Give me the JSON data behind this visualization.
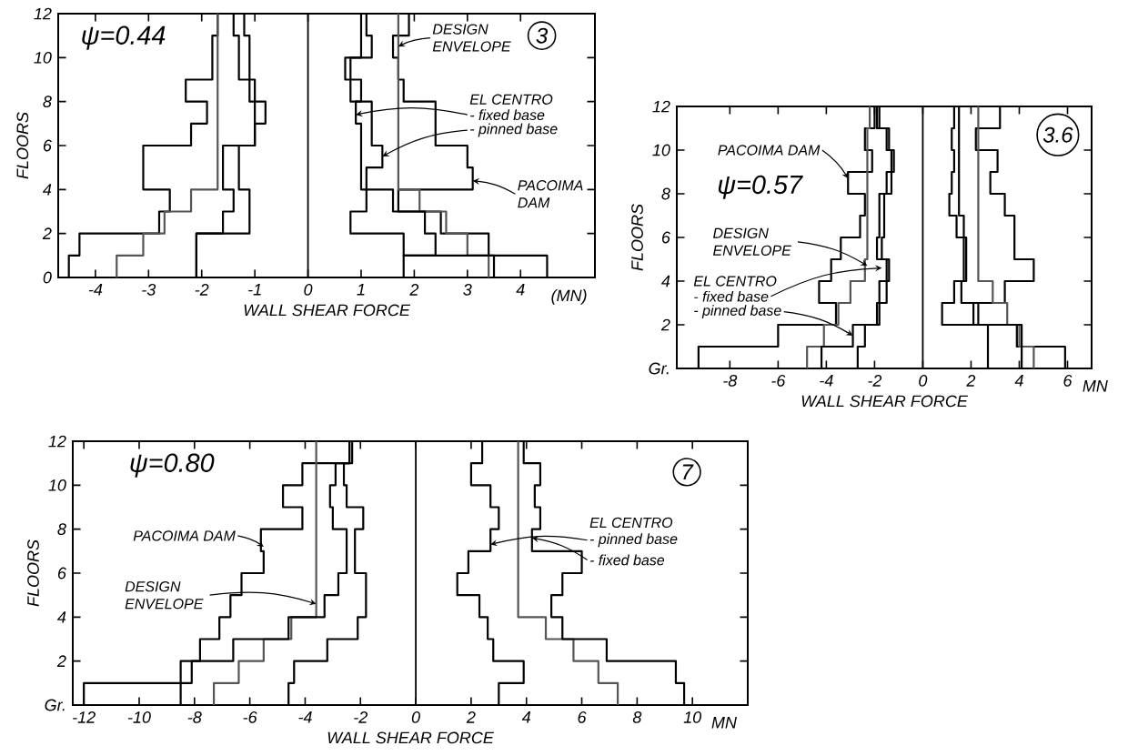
{
  "chart_data": [
    {
      "type": "line",
      "xlabel": "WALL SHEAR FORCE",
      "ylabel": "FLOORS",
      "xlim": [
        -4.7,
        5.4
      ],
      "ylim": [
        0,
        12
      ],
      "xticks": [
        -4,
        -3,
        -2,
        -1,
        0,
        1,
        2,
        3,
        4
      ],
      "yticks": [
        0,
        2,
        4,
        6,
        8,
        10,
        12
      ],
      "ref_lines": [
        {
          "axis": "x",
          "value": 0
        }
      ],
      "annotations": [
        "ψ=0.44",
        "3",
        "(MN)",
        {
          "text": "DESIGN ENVELOPE",
          "x": 1.7,
          "y": 10.5
        },
        "EL CENTRO",
        {
          "text": "- fixed base",
          "x": 0.9,
          "y": 7.4
        },
        {
          "text": "- pinned base",
          "x": 1.4,
          "y": 5.5
        },
        {
          "text": "PACOIMA DAM",
          "x": 3.1,
          "y": 4.4
        }
      ],
      "series": [
        {
          "color": "#000000",
          "x": [
            -4.5,
            -4.5,
            -4.3,
            -4.3,
            -2.8,
            -2.8,
            -2.6,
            -2.6,
            -3.1,
            -3.1,
            -3.1,
            -3.1,
            -2.2,
            -2.2,
            -1.9,
            -1.9,
            -2.3,
            -2.3,
            -1.8,
            -1.8,
            -1.8,
            -1.8,
            -1.7,
            -1.7
          ],
          "values": [
            0,
            1,
            1,
            2,
            2,
            3,
            3,
            4,
            4,
            5,
            5,
            6,
            6,
            7,
            7,
            8,
            8,
            9,
            9,
            10,
            10,
            11,
            11,
            12
          ]
        },
        {
          "color": "#555555",
          "x": [
            -3.6,
            -3.6,
            -3.1,
            -3.1,
            -2.7,
            -2.7,
            -2.2,
            -2.2,
            -1.7,
            -1.7,
            -1.7,
            -1.7,
            -1.7,
            -1.7,
            -1.7,
            -1.7,
            -1.7,
            -1.7,
            -1.7,
            -1.7,
            -1.7,
            -1.7,
            -1.7,
            -1.7
          ],
          "values": [
            0,
            1,
            1,
            2,
            2,
            3,
            3,
            4,
            4,
            5,
            5,
            6,
            6,
            7,
            7,
            8,
            8,
            9,
            9,
            10,
            10,
            11,
            11,
            12
          ]
        },
        {
          "color": "#000000",
          "x": [
            -2.1,
            -2.1,
            -2.1,
            -2.1,
            -1.1,
            -1.1,
            -1.1,
            -1.1,
            -1.3,
            -1.3,
            -1.3,
            -1.3,
            -1.0,
            -1.0,
            -0.8,
            -0.8,
            -1.0,
            -1.0,
            -1.1,
            -1.1,
            -1.1,
            -1.1,
            -1.2,
            -1.2
          ],
          "values": [
            0,
            1,
            1,
            2,
            2,
            3,
            3,
            4,
            4,
            5,
            5,
            6,
            6,
            7,
            7,
            8,
            8,
            9,
            9,
            10,
            10,
            11,
            11,
            12
          ]
        },
        {
          "color": "#000000",
          "x": [
            -2.1,
            -2.1,
            -2.1,
            -2.1,
            -1.6,
            -1.6,
            -1.4,
            -1.4,
            -1.6,
            -1.6,
            -1.6,
            -1.6,
            -1.0,
            -1.0,
            -1.0,
            -1.0,
            -1.1,
            -1.1,
            -1.3,
            -1.3,
            -1.3,
            -1.3,
            -1.4,
            -1.4
          ],
          "values": [
            0,
            1,
            1,
            2,
            2,
            3,
            3,
            4,
            4,
            5,
            5,
            6,
            6,
            7,
            7,
            8,
            8,
            9,
            9,
            10,
            10,
            11,
            11,
            12
          ]
        },
        {
          "color": "#000000",
          "x": [
            4.5,
            4.5,
            3.4,
            3.4,
            2.5,
            2.5,
            1.7,
            1.7,
            3.1,
            3.1,
            3.0,
            3.0,
            2.4,
            2.4,
            1.8,
            1.8,
            1.7,
            1.7,
            1.6,
            1.6,
            1.9,
            1.9
          ],
          "values": [
            0,
            1,
            1,
            2,
            2,
            3,
            3,
            4,
            4,
            5,
            5,
            6,
            6,
            8,
            8,
            9,
            9,
            10,
            10,
            11,
            11,
            12
          ]
        },
        {
          "color": "#555555",
          "x": [
            3.4,
            3.4,
            3.0,
            3.0,
            2.6,
            2.6,
            2.1,
            2.1,
            1.7,
            1.7,
            1.7,
            1.7,
            1.7,
            1.7,
            1.7,
            1.7,
            1.7,
            1.7,
            1.7,
            1.7,
            1.7,
            1.7,
            1.7,
            1.7
          ],
          "values": [
            0,
            1,
            1,
            2,
            2,
            3,
            3,
            4,
            4,
            5,
            5,
            6,
            6,
            7,
            7,
            8,
            8,
            9,
            9,
            10,
            10,
            11,
            11,
            12
          ]
        },
        {
          "color": "#000000",
          "x": [
            1.8,
            1.8,
            2.4,
            2.4,
            2.2,
            2.2,
            1.6,
            1.6,
            1.0,
            1.0,
            1.0,
            1.0,
            1.0,
            1.0,
            0.9,
            0.9,
            1.0,
            1.0,
            0.7,
            0.7,
            1.0,
            1.0,
            1.0,
            1.0
          ],
          "values": [
            0,
            1,
            1,
            2,
            2,
            3,
            3,
            4,
            4,
            5,
            5,
            6,
            6,
            7,
            7,
            8,
            8,
            9,
            9,
            10,
            10,
            11,
            11,
            12
          ]
        },
        {
          "color": "#000000",
          "x": [
            3.5,
            3.5,
            1.8,
            1.8,
            0.8,
            0.8,
            1.1,
            1.1,
            1.1,
            1.1,
            1.4,
            1.4,
            1.2,
            1.2,
            1.2,
            1.2,
            0.8,
            0.8,
            0.8,
            0.8,
            1.2,
            1.2,
            1.1,
            1.1
          ],
          "values": [
            0,
            1,
            1,
            2,
            2,
            3,
            3,
            4,
            4,
            5,
            5,
            6,
            6,
            7,
            7,
            8,
            8,
            9,
            9,
            10,
            10,
            11,
            11,
            12
          ]
        }
      ]
    },
    {
      "type": "line",
      "xlabel": "WALL SHEAR FORCE",
      "ylabel": "FLOORS",
      "xlim": [
        -10.2,
        7
      ],
      "ylim": [
        0,
        12
      ],
      "xticks": [
        -8,
        -6,
        -4,
        -2,
        0,
        2,
        4,
        6
      ],
      "yticks": [
        {
          "value": 0,
          "label": "Gr."
        },
        2,
        4,
        6,
        8,
        10,
        12
      ],
      "ref_lines": [
        {
          "axis": "x",
          "value": 0
        }
      ],
      "annotations": [
        "ψ=0.57",
        "3.6",
        "MN",
        {
          "text": "PACOIMA DAM",
          "x": -3.1,
          "y": 8.7
        },
        {
          "text": "DESIGN ENVELOPE",
          "x": -2.3,
          "y": 4.7
        },
        "EL CENTRO",
        {
          "text": "- fixed base",
          "x": -1.7,
          "y": 4.6
        },
        {
          "text": "- pinned base",
          "x": -2.9,
          "y": 1.5
        }
      ],
      "series": [
        {
          "color": "#000000",
          "x": [
            -9.3,
            -9.3,
            -6.0,
            -6.0,
            -3.6,
            -3.6,
            -4.3,
            -4.3,
            -3.8,
            -3.8,
            -3.4,
            -3.4,
            -2.6,
            -2.6,
            -2.4,
            -2.4,
            -3.1,
            -3.1,
            -2.1,
            -2.1,
            -2.4,
            -2.4,
            -2.0,
            -2.0
          ],
          "values": [
            0,
            1,
            1,
            2,
            2,
            3,
            3,
            4,
            4,
            5,
            5,
            6,
            6,
            7,
            7,
            8,
            8,
            9,
            9,
            10,
            10,
            11,
            11,
            12
          ]
        },
        {
          "color": "#555555",
          "x": [
            -4.8,
            -4.8,
            -4.1,
            -4.1,
            -3.5,
            -3.5,
            -3.0,
            -3.0,
            -2.4,
            -2.4,
            -2.3,
            -2.3,
            -2.3,
            -2.3,
            -2.3,
            -2.3,
            -2.3,
            -2.3,
            -2.3,
            -2.3,
            -2.3,
            -2.3,
            -2.2,
            -2.2
          ],
          "values": [
            0,
            1,
            1,
            2,
            2,
            3,
            3,
            4,
            4,
            5,
            5,
            6,
            6,
            7,
            7,
            8,
            8,
            9,
            9,
            10,
            10,
            11,
            11,
            12
          ]
        },
        {
          "color": "#000000",
          "x": [
            -2.7,
            -2.7,
            -2.4,
            -2.4,
            -1.8,
            -1.8,
            -1.8,
            -1.8,
            -1.4,
            -1.4,
            -1.7,
            -1.7,
            -1.6,
            -1.6,
            -1.6,
            -1.6,
            -1.3,
            -1.3,
            -1.2,
            -1.2,
            -1.4,
            -1.4,
            -1.8,
            -1.8
          ],
          "values": [
            0,
            1,
            1,
            2,
            2,
            3,
            3,
            4,
            4,
            5,
            5,
            6,
            6,
            7,
            7,
            8,
            8,
            9,
            9,
            10,
            10,
            11,
            11,
            12
          ]
        },
        {
          "color": "#000000",
          "x": [
            -4.2,
            -4.2,
            -2.9,
            -2.9,
            -1.9,
            -1.9,
            -1.5,
            -1.5,
            -1.5,
            -1.5,
            -1.9,
            -1.9,
            -1.8,
            -1.8,
            -1.8,
            -1.8,
            -1.5,
            -1.5,
            -1.3,
            -1.3,
            -1.5,
            -1.5,
            -1.9,
            -1.9
          ],
          "values": [
            0,
            1,
            1,
            2,
            2,
            3,
            3,
            4,
            4,
            5,
            5,
            6,
            6,
            7,
            7,
            8,
            8,
            9,
            9,
            10,
            10,
            11,
            11,
            12
          ]
        },
        {
          "color": "#000000",
          "x": [
            5.9,
            5.9,
            3.9,
            3.9,
            2.1,
            2.1,
            3.4,
            3.4,
            4.6,
            4.6,
            3.8,
            3.8,
            3.4,
            3.4,
            2.8,
            2.8,
            3.1,
            3.1,
            2.2,
            2.2,
            3.2,
            3.2
          ],
          "values": [
            0,
            1,
            1,
            2,
            2,
            3,
            3,
            4,
            4,
            5,
            5,
            7,
            7,
            8,
            8,
            9,
            9,
            10,
            10,
            11,
            11,
            12
          ]
        },
        {
          "color": "#555555",
          "x": [
            4.6,
            4.6,
            4.0,
            4.0,
            3.5,
            3.5,
            2.9,
            2.9,
            2.3,
            2.3,
            2.3,
            2.3,
            2.3,
            2.3,
            2.3,
            2.3,
            2.3,
            2.3,
            2.3,
            2.3,
            2.3,
            2.3,
            2.3,
            2.3
          ],
          "values": [
            0,
            1,
            1,
            2,
            2,
            3,
            3,
            4,
            4,
            5,
            5,
            6,
            6,
            7,
            7,
            8,
            8,
            9,
            9,
            10,
            10,
            11,
            11,
            12
          ]
        },
        {
          "color": "#000000",
          "x": [
            2.7,
            2.7,
            2.7,
            2.7,
            0.8,
            0.8,
            1.3,
            1.3,
            1.7,
            1.7,
            1.7,
            1.7,
            1.4,
            1.4,
            1.1,
            1.1,
            1.2,
            1.2,
            1.3,
            1.3,
            1.2,
            1.2,
            1.3,
            1.3
          ],
          "values": [
            0,
            1,
            1,
            2,
            2,
            3,
            3,
            4,
            4,
            5,
            5,
            6,
            6,
            7,
            7,
            8,
            8,
            9,
            9,
            10,
            10,
            11,
            11,
            12
          ]
        },
        {
          "color": "#000000",
          "x": [
            4.1,
            4.1,
            4.1,
            4.1,
            2.3,
            2.3,
            1.6,
            1.6,
            1.8,
            1.8,
            1.8,
            1.8,
            1.7,
            1.7,
            1.5,
            1.5,
            1.5,
            1.5,
            1.5,
            1.5,
            1.5,
            1.5,
            1.5,
            1.5
          ],
          "values": [
            0,
            1,
            1,
            2,
            2,
            3,
            3,
            4,
            4,
            5,
            5,
            6,
            6,
            7,
            7,
            8,
            8,
            9,
            9,
            10,
            10,
            11,
            11,
            12
          ]
        }
      ]
    },
    {
      "type": "line",
      "xlabel": "WALL SHEAR FORCE",
      "ylabel": "FLOORS",
      "xlim": [
        -12.4,
        12
      ],
      "ylim": [
        0,
        12
      ],
      "xticks": [
        -12,
        -10,
        -8,
        -6,
        -4,
        -2,
        0,
        2,
        4,
        6,
        8,
        10
      ],
      "yticks": [
        {
          "value": 0,
          "label": "Gr."
        },
        2,
        4,
        6,
        8,
        10,
        12
      ],
      "ref_lines": [
        {
          "axis": "x",
          "value": 0
        }
      ],
      "annotations": [
        "ψ=0.80",
        "7",
        "MN",
        {
          "text": "PACOIMA DAM",
          "x": -5.5,
          "y": 7.2
        },
        {
          "text": "DESIGN ENVELOPE",
          "x": -3.6,
          "y": 4.6
        },
        "EL CENTRO",
        {
          "text": "- pinned base",
          "x": 2.7,
          "y": 7.3
        },
        {
          "text": "- fixed base",
          "x": 4.2,
          "y": 7.6
        }
      ],
      "series": [
        {
          "color": "#000000",
          "x": [
            -12.0,
            -12.0,
            -8.1,
            -8.1,
            -7.8,
            -7.8,
            -7.1,
            -7.1,
            -6.7,
            -6.7,
            -6.3,
            -6.3,
            -5.5,
            -5.5,
            -5.6,
            -5.6,
            -4.1,
            -4.1,
            -4.8,
            -4.8,
            -4.1,
            -4.1,
            -2.4,
            -2.4
          ],
          "values": [
            0,
            1,
            1,
            2,
            2,
            3,
            3,
            4,
            4,
            5,
            5,
            6,
            6,
            7,
            7,
            8,
            8,
            9,
            9,
            10,
            10,
            11,
            11,
            12
          ]
        },
        {
          "color": "#555555",
          "x": [
            -7.3,
            -7.3,
            -6.4,
            -6.4,
            -5.5,
            -5.5,
            -4.5,
            -4.5,
            -3.6,
            -3.6,
            -3.6,
            -3.6,
            -3.6,
            -3.6,
            -3.6,
            -3.6,
            -3.6,
            -3.6,
            -3.6,
            -3.6,
            -3.6,
            -3.6,
            -3.6,
            -3.6
          ],
          "values": [
            0,
            1,
            1,
            2,
            2,
            3,
            3,
            4,
            4,
            5,
            5,
            6,
            6,
            7,
            7,
            8,
            8,
            9,
            9,
            10,
            10,
            11,
            11,
            12
          ]
        },
        {
          "color": "#000000",
          "x": [
            -4.6,
            -4.6,
            -4.4,
            -4.4,
            -3.2,
            -3.2,
            -2.1,
            -2.1,
            -1.8,
            -1.8,
            -1.8,
            -1.8,
            -2.2,
            -2.2,
            -2.2,
            -2.2,
            -1.9,
            -1.9,
            -2.5,
            -2.5,
            -2.6,
            -2.6,
            -2.4,
            -2.4
          ],
          "values": [
            0,
            1,
            1,
            2,
            2,
            3,
            3,
            4,
            4,
            5,
            5,
            6,
            6,
            7,
            7,
            8,
            8,
            9,
            9,
            10,
            10,
            11,
            11,
            12
          ]
        },
        {
          "color": "#000000",
          "x": [
            -8.5,
            -8.5,
            -8.5,
            -8.5,
            -6.6,
            -6.6,
            -4.6,
            -4.6,
            -3.3,
            -3.3,
            -2.8,
            -2.8,
            -2.5,
            -2.5,
            -2.5,
            -2.5,
            -3.0,
            -3.0,
            -3.1,
            -3.1,
            -2.9,
            -2.9,
            -2.3,
            -2.3
          ],
          "values": [
            0,
            1,
            1,
            2,
            2,
            3,
            3,
            4,
            4,
            5,
            5,
            6,
            6,
            7,
            7,
            8,
            8,
            9,
            9,
            10,
            10,
            11,
            11,
            12
          ]
        },
        {
          "color": "#555555",
          "x": [
            7.3,
            7.3,
            6.6,
            6.6,
            5.7,
            5.7,
            4.7,
            4.7,
            3.7,
            3.7,
            3.7,
            3.7,
            3.7,
            3.7,
            3.7,
            3.7,
            3.7,
            3.7,
            3.7,
            3.7,
            3.7,
            3.7,
            3.7,
            3.7
          ],
          "values": [
            0,
            1,
            1,
            2,
            2,
            3,
            3,
            4,
            4,
            5,
            5,
            6,
            6,
            7,
            7,
            8,
            8,
            9,
            9,
            10,
            10,
            11,
            11,
            12
          ]
        },
        {
          "color": "#000000",
          "x": [
            3.0,
            3.0,
            3.9,
            3.9,
            2.8,
            2.8,
            2.6,
            2.6,
            2.3,
            2.3,
            1.5,
            1.5,
            1.9,
            1.9,
            2.7,
            2.7,
            3.0,
            3.0,
            2.7,
            2.7,
            2.0,
            2.0,
            2.4,
            2.4
          ],
          "values": [
            0,
            1,
            1,
            2,
            2,
            3,
            3,
            4,
            4,
            5,
            5,
            6,
            6,
            7,
            7,
            8,
            8,
            9,
            9,
            10,
            10,
            11,
            11,
            12
          ]
        },
        {
          "color": "#000000",
          "x": [
            9.7,
            9.7,
            9.4,
            9.4,
            6.9,
            6.9,
            5.3,
            5.3,
            4.9,
            4.9,
            5.3,
            5.3,
            6.0,
            6.0,
            4.2,
            4.2,
            4.5,
            4.5,
            4.3,
            4.3,
            4.5,
            4.5,
            3.9,
            3.9
          ],
          "values": [
            0,
            1,
            1,
            2,
            2,
            3,
            3,
            4,
            4,
            5,
            5,
            6,
            6,
            7,
            7,
            8,
            8,
            9,
            9,
            10,
            10,
            11,
            11,
            12
          ]
        }
      ]
    }
  ]
}
